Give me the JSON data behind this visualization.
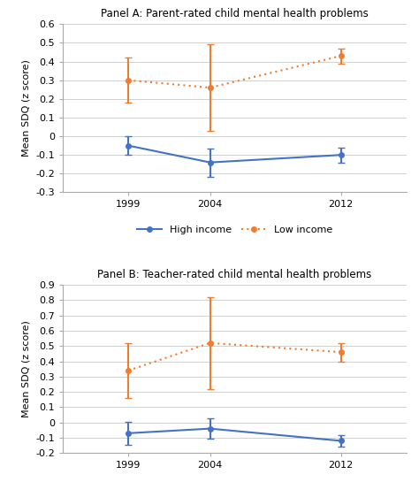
{
  "panel_a": {
    "title": "Panel A: Parent-rated child mental health problems",
    "years": [
      1999,
      2004,
      2012
    ],
    "high_income_mean": [
      -0.05,
      -0.14,
      -0.1
    ],
    "high_income_err": [
      0.05,
      0.075,
      0.04
    ],
    "low_income_mean": [
      0.3,
      0.26,
      0.43
    ],
    "low_income_err": [
      0.12,
      0.23,
      0.04
    ],
    "ylim": [
      -0.3,
      0.6
    ],
    "yticks": [
      -0.3,
      -0.2,
      -0.1,
      0.0,
      0.1,
      0.2,
      0.3,
      0.4,
      0.5,
      0.6
    ],
    "ylabel": "Mean SDQ (z score)"
  },
  "panel_b": {
    "title": "Panel B: Teacher-rated child mental health problems",
    "years": [
      1999,
      2004,
      2012
    ],
    "high_income_mean": [
      -0.07,
      -0.04,
      -0.12
    ],
    "high_income_err": [
      0.075,
      0.065,
      0.04
    ],
    "low_income_mean": [
      0.34,
      0.52,
      0.46
    ],
    "low_income_err": [
      0.18,
      0.3,
      0.06
    ],
    "ylim": [
      -0.2,
      0.9
    ],
    "yticks": [
      -0.2,
      -0.1,
      0.0,
      0.1,
      0.2,
      0.3,
      0.4,
      0.5,
      0.6,
      0.7,
      0.8,
      0.9
    ],
    "ylabel": "Mean SDQ (z score)"
  },
  "high_income_color": "#4472C4",
  "low_income_color": "#ED7D31",
  "background_color": "#ffffff",
  "xlim": [
    1995,
    2016
  ]
}
